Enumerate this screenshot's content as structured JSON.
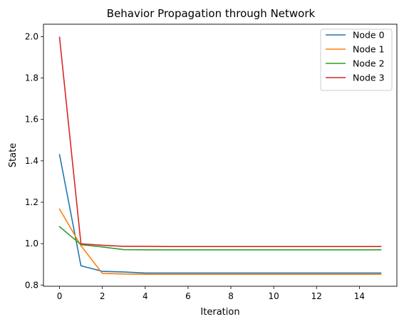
{
  "chart_data": {
    "type": "line",
    "title": "Behavior Propagation through Network",
    "xlabel": "Iteration",
    "ylabel": "State",
    "xlim": [
      -0.75,
      15.75
    ],
    "ylim": [
      0.794,
      2.06
    ],
    "xticks": [
      0,
      2,
      4,
      6,
      8,
      10,
      12,
      14
    ],
    "yticks": [
      0.8,
      1.0,
      1.2,
      1.4,
      1.6,
      1.8,
      2.0
    ],
    "x": [
      0,
      1,
      2,
      3,
      4,
      5,
      6,
      7,
      8,
      9,
      10,
      11,
      12,
      13,
      14,
      15
    ],
    "grid": false,
    "legend_position": "top-right",
    "series": [
      {
        "name": "Node 0",
        "color": "#1f77b4",
        "values": [
          1.43,
          0.893,
          0.866,
          0.863,
          0.858,
          0.858,
          0.858,
          0.858,
          0.858,
          0.858,
          0.858,
          0.858,
          0.858,
          0.858,
          0.858,
          0.858
        ]
      },
      {
        "name": "Node 1",
        "color": "#ff7f0e",
        "values": [
          1.167,
          0.99,
          0.856,
          0.853,
          0.852,
          0.852,
          0.852,
          0.852,
          0.852,
          0.852,
          0.852,
          0.852,
          0.852,
          0.852,
          0.852,
          0.852
        ]
      },
      {
        "name": "Node 2",
        "color": "#2ca02c",
        "values": [
          1.082,
          0.995,
          0.984,
          0.971,
          0.97,
          0.97,
          0.97,
          0.97,
          0.97,
          0.97,
          0.97,
          0.97,
          0.97,
          0.97,
          0.97,
          0.97
        ]
      },
      {
        "name": "Node 3",
        "color": "#d62728",
        "values": [
          1.997,
          0.999,
          0.992,
          0.987,
          0.987,
          0.986,
          0.986,
          0.986,
          0.986,
          0.986,
          0.986,
          0.986,
          0.986,
          0.986,
          0.986,
          0.986
        ]
      }
    ]
  }
}
